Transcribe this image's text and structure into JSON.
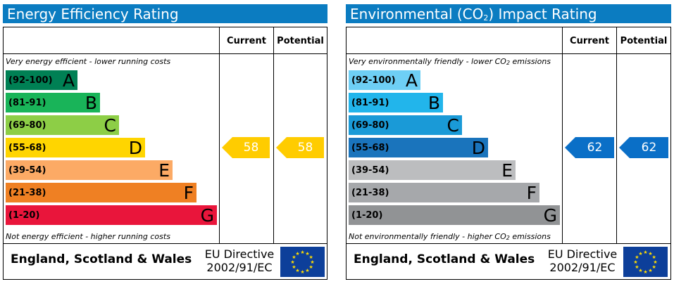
{
  "panels": [
    {
      "title": "Energy Efficiency Rating",
      "headers": {
        "current": "Current",
        "potential": "Potential"
      },
      "top_caption": "Very energy efficient - lower running costs",
      "bottom_caption": "Not energy efficient - higher running costs",
      "bands": [
        {
          "range": "(92-100)",
          "letter": "A",
          "color": "#008054",
          "text_color": "#000000"
        },
        {
          "range": "(81-91)",
          "letter": "B",
          "color": "#19b459",
          "text_color": "#000000"
        },
        {
          "range": "(69-80)",
          "letter": "C",
          "color": "#8dce46",
          "text_color": "#000000"
        },
        {
          "range": "(55-68)",
          "letter": "D",
          "color": "#ffd500",
          "text_color": "#000000"
        },
        {
          "range": "(39-54)",
          "letter": "E",
          "color": "#fcaa65",
          "text_color": "#000000"
        },
        {
          "range": "(21-38)",
          "letter": "F",
          "color": "#ef8023",
          "text_color": "#000000"
        },
        {
          "range": "(1-20)",
          "letter": "G",
          "color": "#e9153b",
          "text_color": "#000000"
        }
      ],
      "current": {
        "value": 58,
        "label": "58",
        "color": "#ffcc00"
      },
      "potential": {
        "value": 58,
        "label": "58",
        "color": "#ffcc00"
      },
      "footer": {
        "region": "England, Scotland & Wales",
        "directive_line1": "EU Directive",
        "directive_line2": "2002/91/EC"
      }
    },
    {
      "title_pre": "Environmental (CO",
      "title_sub": "2",
      "title_post": ") Impact Rating",
      "headers": {
        "current": "Current",
        "potential": "Potential"
      },
      "top_caption_pre": "Very environmentally friendly - lower CO",
      "top_caption_sub": "2",
      "top_caption_post": " emissions",
      "bottom_caption_pre": "Not environmentally friendly - higher CO",
      "bottom_caption_sub": "2",
      "bottom_caption_post": " emissions",
      "bands": [
        {
          "range": "(92-100)",
          "letter": "A",
          "color": "#6ecff5",
          "text_color": "#000000"
        },
        {
          "range": "(81-91)",
          "letter": "B",
          "color": "#22b5eb",
          "text_color": "#000000"
        },
        {
          "range": "(69-80)",
          "letter": "C",
          "color": "#1a9ad7",
          "text_color": "#000000"
        },
        {
          "range": "(55-68)",
          "letter": "D",
          "color": "#1a74bc",
          "text_color": "#000000"
        },
        {
          "range": "(39-54)",
          "letter": "E",
          "color": "#bcbdbf",
          "text_color": "#000000"
        },
        {
          "range": "(21-38)",
          "letter": "F",
          "color": "#a6a8ab",
          "text_color": "#000000"
        },
        {
          "range": "(1-20)",
          "letter": "G",
          "color": "#919395",
          "text_color": "#000000"
        }
      ],
      "current": {
        "value": 62,
        "label": "62",
        "color": "#0a6fc7"
      },
      "potential": {
        "value": 62,
        "label": "62",
        "color": "#0a6fc7"
      },
      "footer": {
        "region": "England, Scotland & Wales",
        "directive_line1": "EU Directive",
        "directive_line2": "2002/91/EC"
      }
    }
  ],
  "chart_data": [
    {
      "type": "bar",
      "title": "Energy Efficiency Rating",
      "categories": [
        "A",
        "B",
        "C",
        "D",
        "E",
        "F",
        "G"
      ],
      "ranges": [
        "92-100",
        "81-91",
        "69-80",
        "55-68",
        "39-54",
        "21-38",
        "1-20"
      ],
      "current": 58,
      "potential": 58
    },
    {
      "type": "bar",
      "title": "Environmental (CO2) Impact Rating",
      "categories": [
        "A",
        "B",
        "C",
        "D",
        "E",
        "F",
        "G"
      ],
      "ranges": [
        "92-100",
        "81-91",
        "69-80",
        "55-68",
        "39-54",
        "21-38",
        "1-20"
      ],
      "current": 62,
      "potential": 62
    }
  ]
}
